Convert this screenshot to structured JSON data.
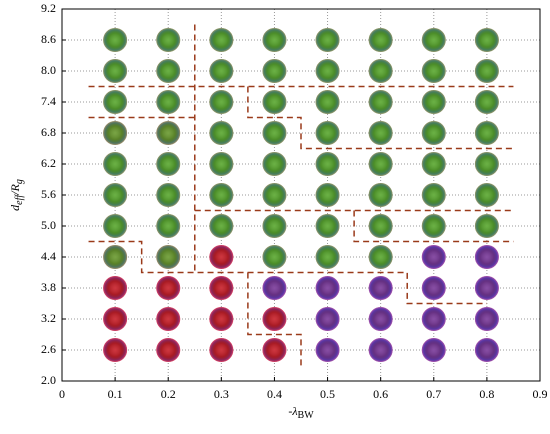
{
  "chart_data": {
    "type": "scatter",
    "xlabel": {
      "main": "-λ",
      "sub": "BW"
    },
    "ylabel": {
      "main": "d",
      "sub": "eff",
      "main2": "/R",
      "sub2": "g"
    },
    "xlim": [
      0,
      0.9
    ],
    "xticks": [
      0,
      0.1,
      0.2,
      0.3,
      0.4,
      0.5,
      0.6,
      0.7,
      0.8,
      0.9
    ],
    "ylim": [
      2.0,
      9.2
    ],
    "yticks": [
      {
        "value": 2,
        "label": "2.0"
      },
      2.6,
      3.2,
      3.8,
      4.4,
      {
        "value": 5,
        "label": "5.0"
      },
      5.6,
      6.2,
      6.8,
      7.4,
      {
        "value": 8,
        "label": "8.0"
      },
      8.6,
      9.2
    ],
    "grid": true,
    "x": [
      0.1,
      0.2,
      0.3,
      0.4,
      0.5,
      0.6,
      0.7,
      0.8,
      0.1,
      0.2,
      0.3,
      0.4,
      0.5,
      0.6,
      0.7,
      0.8,
      0.1,
      0.2,
      0.3,
      0.4,
      0.5,
      0.6,
      0.7,
      0.8,
      0.1,
      0.2,
      0.3,
      0.4,
      0.5,
      0.6,
      0.7,
      0.8,
      0.1,
      0.2,
      0.3,
      0.4,
      0.5,
      0.6,
      0.7,
      0.8,
      0.1,
      0.2,
      0.3,
      0.4,
      0.5,
      0.6,
      0.7,
      0.8,
      0.1,
      0.2,
      0.3,
      0.4,
      0.5,
      0.6,
      0.7,
      0.8,
      0.1,
      0.2,
      0.3,
      0.4,
      0.5,
      0.6,
      0.7,
      0.8,
      0.1,
      0.2,
      0.3,
      0.4,
      0.5,
      0.6,
      0.7,
      0.8,
      0.1,
      0.2,
      0.3,
      0.4,
      0.5,
      0.6,
      0.7,
      0.8,
      0.1,
      0.2,
      0.3,
      0.4,
      0.5,
      0.6,
      0.7,
      0.8
    ],
    "y": [
      2.6,
      2.6,
      2.6,
      2.6,
      2.6,
      2.6,
      2.6,
      2.6,
      3.2,
      3.2,
      3.2,
      3.2,
      3.2,
      3.2,
      3.2,
      3.2,
      3.8,
      3.8,
      3.8,
      3.8,
      3.8,
      3.8,
      3.8,
      3.8,
      4.4,
      4.4,
      4.4,
      4.4,
      4.4,
      4.4,
      4.4,
      4.4,
      5.0,
      5.0,
      5.0,
      5.0,
      5.0,
      5.0,
      5.0,
      5.0,
      5.6,
      5.6,
      5.6,
      5.6,
      5.6,
      5.6,
      5.6,
      5.6,
      6.2,
      6.2,
      6.2,
      6.2,
      6.2,
      6.2,
      6.2,
      6.2,
      6.8,
      6.8,
      6.8,
      6.8,
      6.8,
      6.8,
      6.8,
      6.8,
      7.4,
      7.4,
      7.4,
      7.4,
      7.4,
      7.4,
      7.4,
      7.4,
      8.0,
      8.0,
      8.0,
      8.0,
      8.0,
      8.0,
      8.0,
      8.0,
      8.6,
      8.6,
      8.6,
      8.6,
      8.6,
      8.6,
      8.6,
      8.6
    ],
    "colors": [
      "#c8202a",
      "#c8202a",
      "#c8202a",
      "#c8202a",
      "#7a3a9a",
      "#7a3a9a",
      "#7a3a9a",
      "#7a3a9a",
      "#c8202a",
      "#c8202a",
      "#c8202a",
      "#c8202a",
      "#7a3a9a",
      "#7a3a9a",
      "#7a3a9a",
      "#7a3a9a",
      "#c8202a",
      "#c8202a",
      "#c8202a",
      "#7a3a9a",
      "#7a3a9a",
      "#7a3a9a",
      "#7a3a9a",
      "#7a3a9a",
      "#6a9a30",
      "#6a9a30",
      "#c8202a",
      "#5aa830",
      "#5aa830",
      "#5aa830",
      "#7a3a9a",
      "#7a3a9a",
      "#5aa830",
      "#5aa830",
      "#5aa830",
      "#5aa830",
      "#5aa830",
      "#5aa830",
      "#5aa830",
      "#5aa830",
      "#5aa830",
      "#5aa830",
      "#5aa830",
      "#5aa830",
      "#5aa830",
      "#5aa830",
      "#5aa830",
      "#5aa830",
      "#5aa830",
      "#5aa830",
      "#5aa830",
      "#5aa830",
      "#5aa830",
      "#5aa830",
      "#5aa830",
      "#5aa830",
      "#6a9a30",
      "#6a9a30",
      "#5aa830",
      "#5aa830",
      "#5aa830",
      "#5aa830",
      "#5aa830",
      "#5aa830",
      "#5aa830",
      "#5aa830",
      "#5aa830",
      "#5aa830",
      "#5aa830",
      "#5aa830",
      "#5aa830",
      "#5aa830",
      "#5aa830",
      "#5aa830",
      "#5aa830",
      "#5aa830",
      "#5aa830",
      "#5aa830",
      "#5aa830",
      "#5aa830",
      "#5aa830",
      "#5aa830",
      "#5aa830",
      "#5aa830",
      "#5aa830",
      "#5aa830",
      "#5aa830",
      "#5aa830"
    ],
    "boundary_color": "#9a3a1a",
    "boundaries": [
      {
        "x": [
          0.05,
          0.85
        ],
        "y": [
          7.7,
          7.7
        ]
      },
      {
        "x": [
          0.25,
          0.25
        ],
        "y": [
          8.9,
          4.1
        ]
      },
      {
        "x": [
          0.05,
          0.25
        ],
        "y": [
          7.1,
          7.1
        ]
      },
      {
        "x": [
          0.35,
          0.35,
          0.45,
          0.45,
          0.85
        ],
        "y": [
          7.7,
          7.1,
          7.1,
          6.5,
          6.5
        ]
      },
      {
        "x": [
          0.25,
          0.85
        ],
        "y": [
          5.3,
          5.3
        ]
      },
      {
        "x": [
          0.55,
          0.55,
          0.85
        ],
        "y": [
          5.3,
          4.7,
          4.7
        ]
      },
      {
        "x": [
          0.05,
          0.15,
          0.15,
          0.65,
          0.65,
          0.8
        ],
        "y": [
          4.7,
          4.7,
          4.1,
          4.1,
          3.5,
          3.5
        ]
      },
      {
        "x": [
          0.35,
          0.35,
          0.45,
          0.45
        ],
        "y": [
          4.1,
          2.9,
          2.9,
          2.3
        ]
      }
    ]
  }
}
